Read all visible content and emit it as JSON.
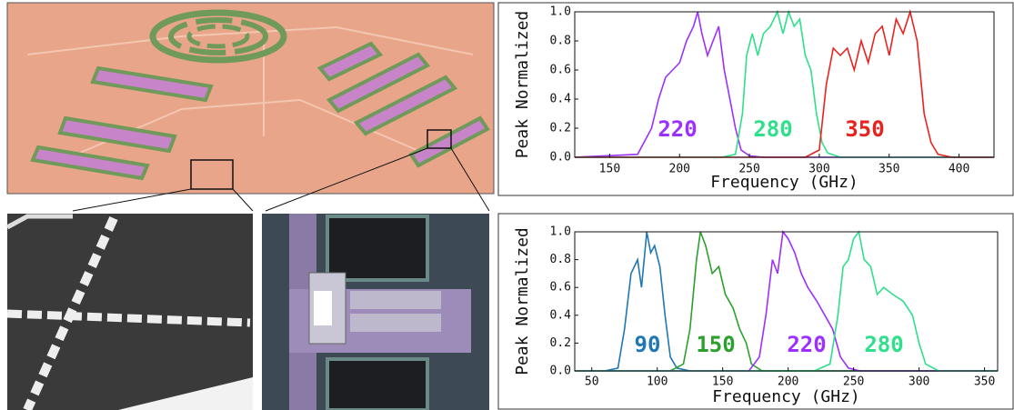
{
  "chart_data": [
    {
      "type": "line",
      "x_label": "Frequency (GHz)",
      "y_label": "Peak Normalized",
      "xlim": [
        125,
        425
      ],
      "xticks": [
        150,
        200,
        250,
        300,
        350,
        400
      ],
      "ylim": [
        0,
        1.0
      ],
      "yticks": [
        {
          "value": 0,
          "label": "0.0"
        },
        0.2,
        0.4,
        0.6,
        0.8,
        {
          "value": 1,
          "label": "1.0"
        }
      ],
      "series": [
        {
          "name": "220",
          "color": "#9b30ff",
          "x": [
            125,
            170,
            180,
            185,
            190,
            195,
            200,
            205,
            210,
            213,
            216,
            220,
            224,
            228,
            232,
            236,
            240,
            244,
            250,
            260,
            425
          ],
          "values": [
            0,
            0.02,
            0.2,
            0.4,
            0.55,
            0.6,
            0.65,
            0.8,
            0.9,
            1.0,
            0.85,
            0.7,
            0.8,
            0.9,
            0.6,
            0.4,
            0.2,
            0.05,
            0.01,
            0,
            0
          ]
        },
        {
          "name": "280",
          "color": "#2ee08a",
          "x": [
            125,
            230,
            240,
            245,
            248,
            252,
            256,
            260,
            265,
            270,
            274,
            278,
            282,
            286,
            290,
            294,
            298,
            302,
            306,
            315,
            425
          ],
          "values": [
            0,
            0,
            0.02,
            0.3,
            0.7,
            0.85,
            0.7,
            0.85,
            0.9,
            1.0,
            0.85,
            1.0,
            0.9,
            0.95,
            0.7,
            0.6,
            0.3,
            0.1,
            0.03,
            0,
            0
          ]
        },
        {
          "name": "350",
          "color": "#e8221f",
          "x": [
            125,
            290,
            300,
            305,
            310,
            315,
            320,
            325,
            330,
            335,
            340,
            345,
            350,
            355,
            360,
            365,
            370,
            375,
            380,
            385,
            395,
            425
          ],
          "values": [
            0,
            0,
            0.05,
            0.5,
            0.75,
            0.7,
            0.75,
            0.6,
            0.8,
            0.65,
            0.85,
            0.9,
            0.7,
            0.95,
            0.85,
            1.0,
            0.8,
            0.3,
            0.1,
            0.02,
            0,
            0
          ]
        }
      ]
    },
    {
      "type": "line",
      "x_label": "Frequency (GHz)",
      "y_label": "Peak Normalized",
      "xlim": [
        37,
        360
      ],
      "xticks": [
        50,
        100,
        150,
        200,
        250,
        300,
        350
      ],
      "ylim": [
        0,
        1.0
      ],
      "yticks": [
        {
          "value": 0,
          "label": "0.0"
        },
        0.2,
        0.4,
        0.6,
        0.8,
        {
          "value": 1,
          "label": "1.0"
        }
      ],
      "series": [
        {
          "name": "90",
          "color": "#1f77b4",
          "x": [
            37,
            60,
            70,
            75,
            80,
            85,
            88,
            92,
            95,
            98,
            102,
            106,
            110,
            115,
            125,
            360
          ],
          "values": [
            0,
            0,
            0.02,
            0.3,
            0.7,
            0.8,
            0.6,
            1.0,
            0.85,
            0.9,
            0.75,
            0.4,
            0.1,
            0.02,
            0,
            0
          ]
        },
        {
          "name": "150",
          "color": "#2ca02c",
          "x": [
            37,
            110,
            120,
            125,
            130,
            133,
            137,
            142,
            147,
            152,
            158,
            163,
            168,
            172,
            180,
            360
          ],
          "values": [
            0,
            0,
            0.05,
            0.3,
            0.8,
            1.0,
            0.9,
            0.7,
            0.75,
            0.55,
            0.45,
            0.3,
            0.2,
            0.05,
            0,
            0
          ]
        },
        {
          "name": "220",
          "color": "#9b30ff",
          "x": [
            37,
            170,
            178,
            183,
            188,
            192,
            196,
            200,
            205,
            210,
            215,
            222,
            228,
            234,
            240,
            246,
            255,
            360
          ],
          "values": [
            0,
            0,
            0.1,
            0.4,
            0.8,
            0.7,
            1.0,
            0.95,
            0.85,
            0.7,
            0.6,
            0.5,
            0.4,
            0.3,
            0.1,
            0.02,
            0,
            0
          ]
        },
        {
          "name": "280",
          "color": "#2ee08a",
          "x": [
            37,
            220,
            232,
            238,
            242,
            246,
            250,
            254,
            258,
            263,
            268,
            273,
            280,
            288,
            295,
            300,
            305,
            315,
            360
          ],
          "values": [
            0,
            0,
            0.05,
            0.4,
            0.75,
            0.8,
            0.95,
            1.0,
            0.8,
            0.75,
            0.55,
            0.6,
            0.55,
            0.5,
            0.4,
            0.2,
            0.05,
            0,
            0
          ]
        }
      ]
    }
  ]
}
